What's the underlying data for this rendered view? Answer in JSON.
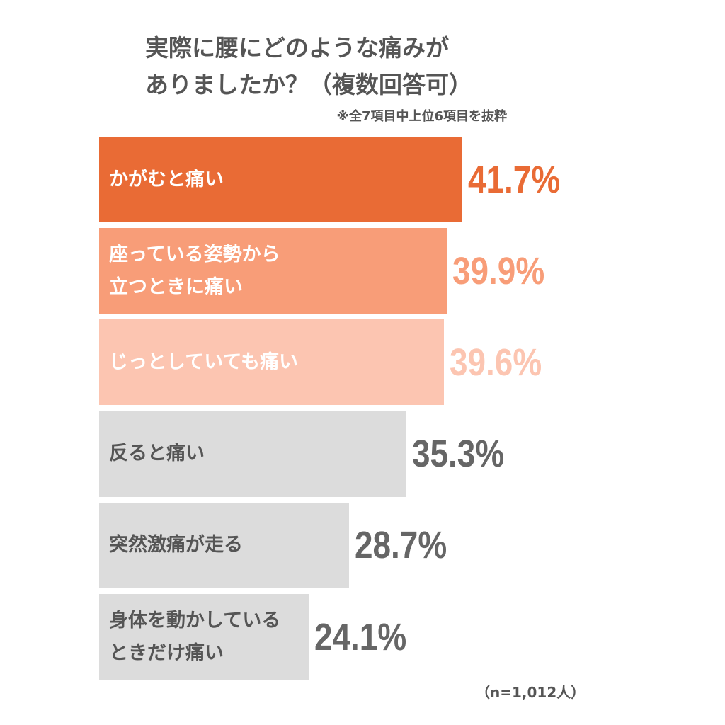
{
  "chart_data": {
    "type": "bar",
    "orientation": "horizontal",
    "title": "実際に腰にどのような痛みが\nありましたか？（複数回答可）",
    "subtitle": "※全7項目中上位6項目を抜粋",
    "note": "（n=1,012人）",
    "categories": [
      "かがむと痛い",
      "座っている姿勢から\n立つときに痛い",
      "じっとしていても痛い",
      "反ると痛い",
      "突然激痛が走る",
      "身体を動かしている\nときだけ痛い"
    ],
    "values": [
      41.7,
      39.9,
      39.6,
      35.3,
      28.7,
      24.1
    ],
    "value_labels": [
      "41.7%",
      "39.9%",
      "39.6%",
      "35.3%",
      "28.7%",
      "24.1%"
    ],
    "colors": [
      "#e96b35",
      "#f89d78",
      "#fcc5b1",
      "#dcdcdc",
      "#dcdcdc",
      "#dcdcdc"
    ],
    "category_label_colors": [
      "#ffffff",
      "#ffffff",
      "#ffffff",
      "#555555",
      "#555555",
      "#555555"
    ],
    "value_label_colors": [
      "#e96b35",
      "#f89d78",
      "#fcc5b1",
      "#666666",
      "#666666",
      "#666666"
    ]
  }
}
